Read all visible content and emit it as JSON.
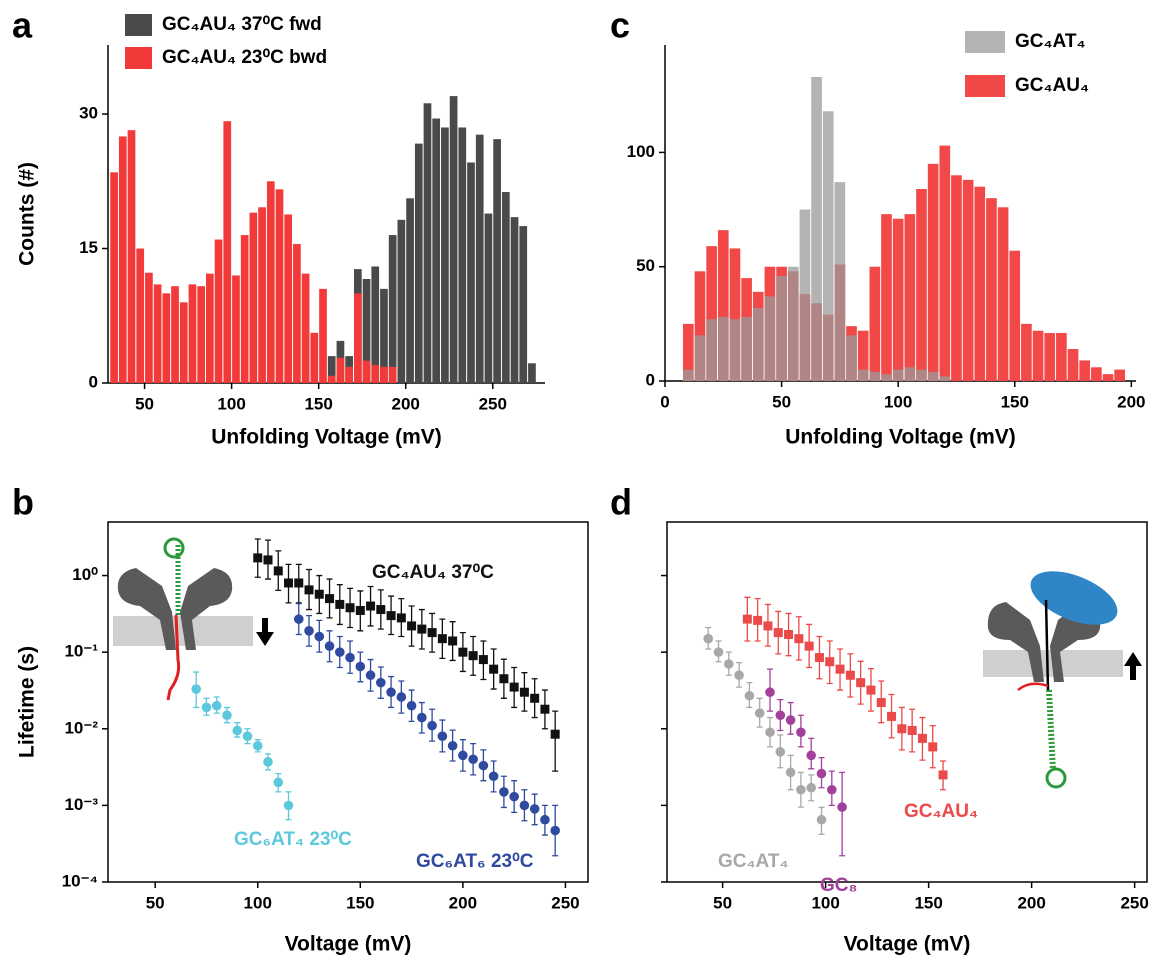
{
  "chart_data": [
    {
      "type": "histogram",
      "panel": "a",
      "xlabel": "Unfolding Voltage (mV)",
      "ylabel": "Counts (#)",
      "xlim": [
        29,
        280
      ],
      "xticks": [
        50,
        100,
        150,
        200,
        250
      ],
      "ylim": [
        0,
        37.7
      ],
      "yticks": [
        0,
        15,
        30
      ],
      "legend": "upper left",
      "series": [
        {
          "name": "GC₄AU₄  37⁰C fwd",
          "color": "#4a4a4a",
          "alpha": 1,
          "bins": [
            155,
            160,
            165,
            170,
            175,
            180,
            185,
            190,
            195,
            200,
            205,
            210,
            215,
            220,
            225,
            230,
            235,
            240,
            245,
            250,
            255,
            260,
            265,
            270,
            275
          ],
          "values": [
            3,
            4.7,
            3,
            12.7,
            11.6,
            13,
            10.5,
            16.5,
            18.2,
            20.6,
            26.7,
            31.2,
            29.5,
            28.5,
            32,
            28.5,
            24.6,
            27.7,
            18.9,
            27.2,
            21.3,
            18.5,
            17.5,
            2.2
          ]
        },
        {
          "name": "GC₄AU₄  23⁰C bwd",
          "color": "#f23a3a",
          "alpha": 1,
          "bins": [
            30,
            35,
            40,
            45,
            50,
            55,
            60,
            65,
            70,
            75,
            80,
            85,
            90,
            95,
            100,
            105,
            110,
            115,
            120,
            125,
            130,
            135,
            140,
            145,
            150,
            155,
            160,
            165,
            170,
            175,
            180,
            185,
            190,
            195
          ],
          "values": [
            23.5,
            27.5,
            28.2,
            15,
            12.3,
            11,
            10,
            10.8,
            9,
            11,
            10.8,
            12.2,
            16,
            29.2,
            12,
            16.5,
            19,
            19.6,
            22.5,
            21.6,
            18.8,
            15.5,
            12.2,
            5.6,
            10.5,
            0.8,
            2.8,
            1.8,
            10,
            2.5,
            2,
            1.8,
            1.8
          ]
        }
      ]
    },
    {
      "type": "scatter",
      "panel": "b",
      "xlabel": "Voltage (mV)",
      "ylabel": "Lifetime (s)",
      "log_y": true,
      "frame": true,
      "xlim": [
        27,
        261
      ],
      "xticks": [
        50,
        100,
        150,
        200,
        250
      ],
      "ylim": [
        0.0001,
        5
      ],
      "yticks": [
        {
          "value": 0.0001,
          "label": "10⁻⁴"
        },
        {
          "value": 0.001,
          "label": "10⁻³"
        },
        {
          "value": 0.01,
          "label": "10⁻²"
        },
        {
          "value": 0.1,
          "label": "10⁻¹"
        },
        {
          "value": 1,
          "label": "10⁰"
        }
      ],
      "ytick_labels": true,
      "series": [
        {
          "name": "GC₄AU₄ 37⁰C",
          "color": "#111111",
          "marker": "square",
          "x": [
            100,
            105,
            110,
            115,
            120,
            125,
            130,
            135,
            140,
            145,
            150,
            155,
            160,
            165,
            170,
            175,
            180,
            185,
            190,
            195,
            200,
            205,
            210,
            215,
            220,
            225,
            230,
            235,
            240,
            245
          ],
          "values": [
            1.7,
            1.6,
            1.15,
            0.8,
            0.8,
            0.65,
            0.57,
            0.5,
            0.42,
            0.38,
            0.35,
            0.4,
            0.36,
            0.3,
            0.28,
            0.22,
            0.2,
            0.18,
            0.15,
            0.14,
            0.1,
            0.09,
            0.08,
            0.06,
            0.045,
            0.035,
            0.03,
            0.025,
            0.018,
            0.0085
          ],
          "upper": [
            3.0,
            2.9,
            2.1,
            1.4,
            1.4,
            1.2,
            1.0,
            0.9,
            0.76,
            0.68,
            0.63,
            0.72,
            0.65,
            0.54,
            0.5,
            0.4,
            0.36,
            0.32,
            0.27,
            0.25,
            0.18,
            0.16,
            0.14,
            0.11,
            0.081,
            0.063,
            0.054,
            0.045,
            0.032,
            0.017
          ],
          "lower": [
            0.95,
            0.9,
            0.64,
            0.44,
            0.44,
            0.36,
            0.32,
            0.28,
            0.23,
            0.21,
            0.19,
            0.22,
            0.2,
            0.17,
            0.16,
            0.12,
            0.11,
            0.1,
            0.083,
            0.078,
            0.056,
            0.05,
            0.044,
            0.033,
            0.025,
            0.019,
            0.017,
            0.014,
            0.01,
            0.0028
          ]
        },
        {
          "name": "GC₆AT₆ 23⁰C",
          "color": "#2f4a9e",
          "marker": "circle",
          "x": [
            120,
            125,
            130,
            135,
            140,
            145,
            150,
            155,
            160,
            165,
            170,
            175,
            180,
            185,
            190,
            195,
            200,
            205,
            210,
            215,
            220,
            225,
            230,
            235,
            240,
            245
          ],
          "values": [
            0.27,
            0.19,
            0.16,
            0.12,
            0.1,
            0.085,
            0.065,
            0.05,
            0.04,
            0.03,
            0.026,
            0.02,
            0.014,
            0.011,
            0.008,
            0.006,
            0.0045,
            0.004,
            0.0033,
            0.0024,
            0.0015,
            0.0013,
            0.001,
            0.0009,
            0.00065,
            0.00047
          ],
          "upper": [
            0.43,
            0.3,
            0.26,
            0.19,
            0.16,
            0.14,
            0.1,
            0.08,
            0.064,
            0.048,
            0.042,
            0.032,
            0.022,
            0.018,
            0.013,
            0.0096,
            0.0072,
            0.0064,
            0.0053,
            0.0038,
            0.0024,
            0.0021,
            0.0016,
            0.0014,
            0.001,
            0.001
          ],
          "lower": [
            0.17,
            0.12,
            0.1,
            0.075,
            0.063,
            0.053,
            0.041,
            0.031,
            0.025,
            0.019,
            0.016,
            0.0125,
            0.0088,
            0.0069,
            0.005,
            0.0038,
            0.0028,
            0.0025,
            0.0021,
            0.0015,
            0.00094,
            0.00081,
            0.00063,
            0.00056,
            0.00041,
            0.00022
          ]
        },
        {
          "name": "GC₆AT₄ 23⁰C",
          "color": "#5cc8dc",
          "marker": "circle",
          "x": [
            70,
            75,
            80,
            85,
            90,
            95,
            100,
            105,
            110,
            115
          ],
          "values": [
            0.033,
            0.019,
            0.02,
            0.015,
            0.0095,
            0.008,
            0.006,
            0.0037,
            0.002,
            0.001
          ],
          "upper": [
            0.055,
            0.025,
            0.026,
            0.019,
            0.012,
            0.01,
            0.0072,
            0.0047,
            0.0026,
            0.0015
          ],
          "lower": [
            0.019,
            0.015,
            0.016,
            0.012,
            0.0078,
            0.0064,
            0.005,
            0.0029,
            0.0015,
            0.00065
          ]
        }
      ]
    },
    {
      "type": "histogram",
      "panel": "c",
      "xlabel": "Unfolding Voltage (mV)",
      "xlim": [
        0,
        202
      ],
      "xticks": [
        0,
        50,
        100,
        150,
        200
      ],
      "ylim": [
        0,
        147
      ],
      "yticks": [
        0,
        50,
        100
      ],
      "legend": "upper right",
      "series": [
        {
          "name": "GC₄AT₄",
          "color": "#9a9a9a",
          "alpha": 0.75,
          "bins": [
            7.5,
            12.5,
            17.5,
            22.5,
            27.5,
            32.5,
            37.5,
            42.5,
            47.5,
            52.5,
            57.5,
            62.5,
            67.5,
            72.5,
            77.5,
            82.5,
            87.5,
            92.5,
            97.5,
            102.5,
            107.5,
            112.5,
            117.5,
            122.5
          ],
          "values": [
            5,
            20,
            27,
            28,
            27,
            28,
            32,
            37,
            46,
            50,
            75,
            133,
            118,
            87,
            20,
            5,
            4,
            3,
            5,
            6,
            5,
            4,
            2
          ]
        },
        {
          "name": "GC₄AU₄",
          "color": "#f24848",
          "alpha": 1,
          "bins": [
            7.5,
            12.5,
            17.5,
            22.5,
            27.5,
            32.5,
            37.5,
            42.5,
            47.5,
            52.5,
            57.5,
            62.5,
            67.5,
            72.5,
            77.5,
            82.5,
            87.5,
            92.5,
            97.5,
            102.5,
            107.5,
            112.5,
            117.5,
            122.5,
            127.5,
            132.5,
            137.5,
            142.5,
            147.5,
            152.5,
            157.5,
            162.5,
            167.5,
            172.5,
            177.5,
            182.5,
            187.5,
            192.5,
            197.5
          ],
          "values": [
            25,
            48,
            59,
            66,
            58,
            45,
            39,
            50,
            50,
            48,
            38,
            34,
            29,
            51,
            24,
            22,
            50,
            73,
            71,
            73,
            84,
            95,
            103,
            90,
            88,
            85,
            80,
            76,
            57,
            25,
            22,
            21,
            21,
            14,
            9,
            6,
            3,
            5
          ]
        }
      ]
    },
    {
      "type": "scatter",
      "panel": "d",
      "xlabel": "Voltage (mV)",
      "log_y": true,
      "frame": true,
      "xlim": [
        23,
        256
      ],
      "xticks": [
        50,
        100,
        150,
        200,
        250
      ],
      "ylim": [
        0.0001,
        5
      ],
      "yticks": [
        0.0001,
        0.001,
        0.01,
        0.1,
        1
      ],
      "ytick_labels": false,
      "series": [
        {
          "name": "GC₄AT₄",
          "color": "#a8a8a8",
          "marker": "circle",
          "x": [
            43,
            48,
            53,
            58,
            63,
            68,
            73,
            78,
            83,
            88,
            93,
            98
          ],
          "values": [
            0.15,
            0.1,
            0.07,
            0.05,
            0.027,
            0.016,
            0.009,
            0.005,
            0.0027,
            0.0016,
            0.0017,
            0.00065
          ],
          "upper": [
            0.21,
            0.14,
            0.1,
            0.073,
            0.04,
            0.025,
            0.014,
            0.0083,
            0.0045,
            0.0027,
            0.0025,
            0.00094
          ],
          "lower": [
            0.11,
            0.075,
            0.05,
            0.035,
            0.019,
            0.0105,
            0.0058,
            0.0031,
            0.0016,
            0.00095,
            0.00115,
            0.00042
          ]
        },
        {
          "name": "GC₈",
          "color": "#a3409c",
          "marker": "circle",
          "x": [
            73,
            78,
            83,
            88,
            93,
            98,
            103,
            108
          ],
          "values": [
            0.03,
            0.015,
            0.013,
            0.009,
            0.0045,
            0.0026,
            0.0016,
            0.00095
          ],
          "upper": [
            0.06,
            0.024,
            0.022,
            0.015,
            0.0075,
            0.0042,
            0.0028,
            0.0027
          ],
          "lower": [
            0.017,
            0.0095,
            0.0085,
            0.0058,
            0.003,
            0.0017,
            0.001,
            0.00022
          ]
        },
        {
          "name": "GC₄AU₄",
          "color": "#ea4a4a",
          "marker": "square",
          "x": [
            62,
            67,
            72,
            77,
            82,
            87,
            92,
            97,
            102,
            107,
            112,
            117,
            122,
            127,
            132,
            137,
            142,
            147,
            152,
            157
          ],
          "values": [
            0.27,
            0.26,
            0.22,
            0.18,
            0.17,
            0.15,
            0.12,
            0.085,
            0.075,
            0.06,
            0.05,
            0.04,
            0.032,
            0.022,
            0.0145,
            0.01,
            0.0095,
            0.0075,
            0.0058,
            0.0025
          ],
          "upper": [
            0.52,
            0.5,
            0.42,
            0.34,
            0.32,
            0.29,
            0.23,
            0.16,
            0.14,
            0.11,
            0.095,
            0.076,
            0.061,
            0.042,
            0.028,
            0.019,
            0.018,
            0.014,
            0.011,
            0.0038
          ],
          "lower": [
            0.14,
            0.14,
            0.12,
            0.095,
            0.09,
            0.079,
            0.063,
            0.045,
            0.039,
            0.032,
            0.026,
            0.021,
            0.017,
            0.012,
            0.0076,
            0.0053,
            0.005,
            0.0039,
            0.0031,
            0.0016
          ]
        }
      ]
    }
  ]
}
